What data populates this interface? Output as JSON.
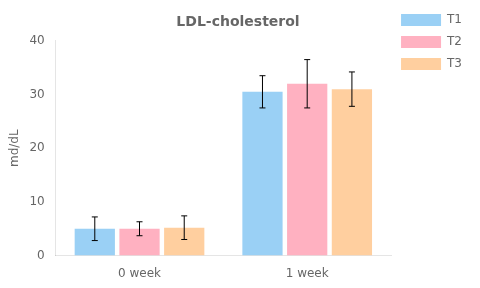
{
  "chart_data": {
    "type": "bar",
    "title": "LDL-cholesterol",
    "ylabel": "md/dL",
    "categories": [
      "0 week",
      "1 week"
    ],
    "series": [
      {
        "name": "T1",
        "values": [
          5.0,
          30.5
        ],
        "errors": [
          2.2,
          3.0
        ]
      },
      {
        "name": "T2",
        "values": [
          5.0,
          32.0
        ],
        "errors": [
          1.3,
          4.5
        ]
      },
      {
        "name": "T3",
        "values": [
          5.2,
          31.0
        ],
        "errors": [
          2.2,
          3.2
        ]
      }
    ],
    "ylim": [
      0,
      40
    ],
    "yticks": [
      0,
      10,
      20,
      30,
      40
    ],
    "grid": false,
    "legend": "right"
  }
}
